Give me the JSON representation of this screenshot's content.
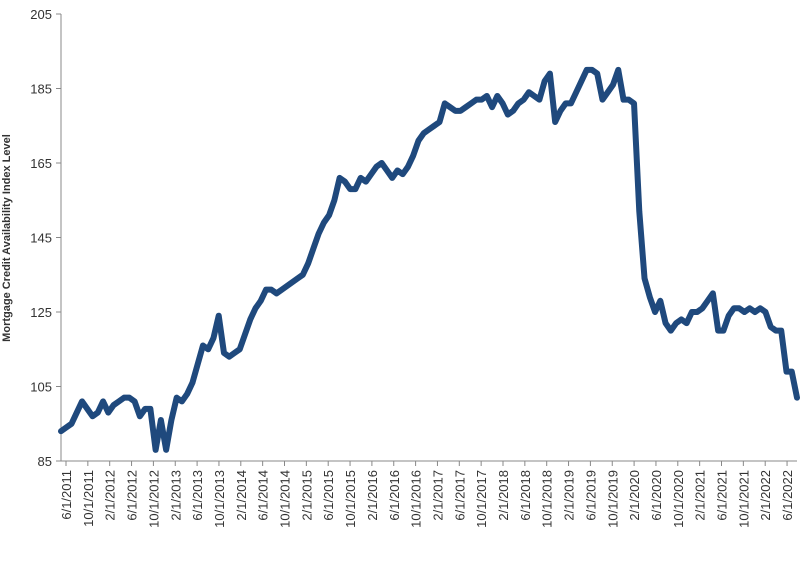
{
  "chart_data": {
    "type": "line",
    "title": "",
    "xlabel": "",
    "ylabel": "Mortgage Credit Availability Index Level",
    "ylim": [
      85,
      205
    ],
    "y_ticks": [
      85,
      105,
      125,
      145,
      165,
      185,
      205
    ],
    "x_tick_labels": [
      "6/1/2011",
      "10/1/2011",
      "2/1/2012",
      "6/1/2012",
      "10/1/2012",
      "2/1/2013",
      "6/1/2013",
      "10/1/2013",
      "2/1/2014",
      "6/1/2014",
      "10/1/2014",
      "2/1/2015",
      "6/1/2015",
      "10/1/2015",
      "2/1/2016",
      "6/1/2016",
      "10/1/2016",
      "2/1/2017",
      "6/1/2017",
      "10/1/2017",
      "2/1/2018",
      "6/1/2018",
      "10/1/2018",
      "2/1/2019",
      "6/1/2019",
      "10/1/2019",
      "2/1/2020",
      "6/1/2020",
      "10/1/2020",
      "2/1/2021",
      "6/1/2021",
      "10/1/2021",
      "2/1/2022",
      "6/1/2022"
    ],
    "grid": false,
    "line_color": "#1f497d",
    "series": [
      {
        "name": "",
        "values": [
          93,
          94,
          95,
          98,
          101,
          99,
          97,
          98,
          101,
          98,
          100,
          101,
          102,
          102,
          101,
          97,
          99,
          99,
          88,
          96,
          88,
          96,
          102,
          101,
          103,
          106,
          111,
          116,
          115,
          118,
          124,
          114,
          113,
          114,
          115,
          119,
          123,
          126,
          128,
          131,
          131,
          130,
          131,
          132,
          133,
          134,
          135,
          138,
          142,
          146,
          149,
          151,
          155,
          161,
          160,
          158,
          158,
          161,
          160,
          162,
          164,
          165,
          163,
          161,
          163,
          162,
          164,
          167,
          171,
          173,
          174,
          175,
          176,
          181,
          180,
          179,
          179,
          180,
          181,
          182,
          182,
          183,
          180,
          183,
          181,
          178,
          179,
          181,
          182,
          184,
          183,
          182,
          187,
          189,
          176,
          179,
          181,
          181,
          184,
          187,
          190,
          190,
          189,
          182,
          184,
          186,
          190,
          182,
          182,
          181,
          152,
          134,
          129,
          125,
          128,
          122,
          120,
          122,
          123,
          122,
          125,
          125,
          126,
          128,
          130,
          120,
          120,
          124,
          126,
          126,
          125,
          126,
          125,
          126,
          125,
          121,
          120,
          120,
          109,
          109,
          102
        ]
      }
    ]
  }
}
